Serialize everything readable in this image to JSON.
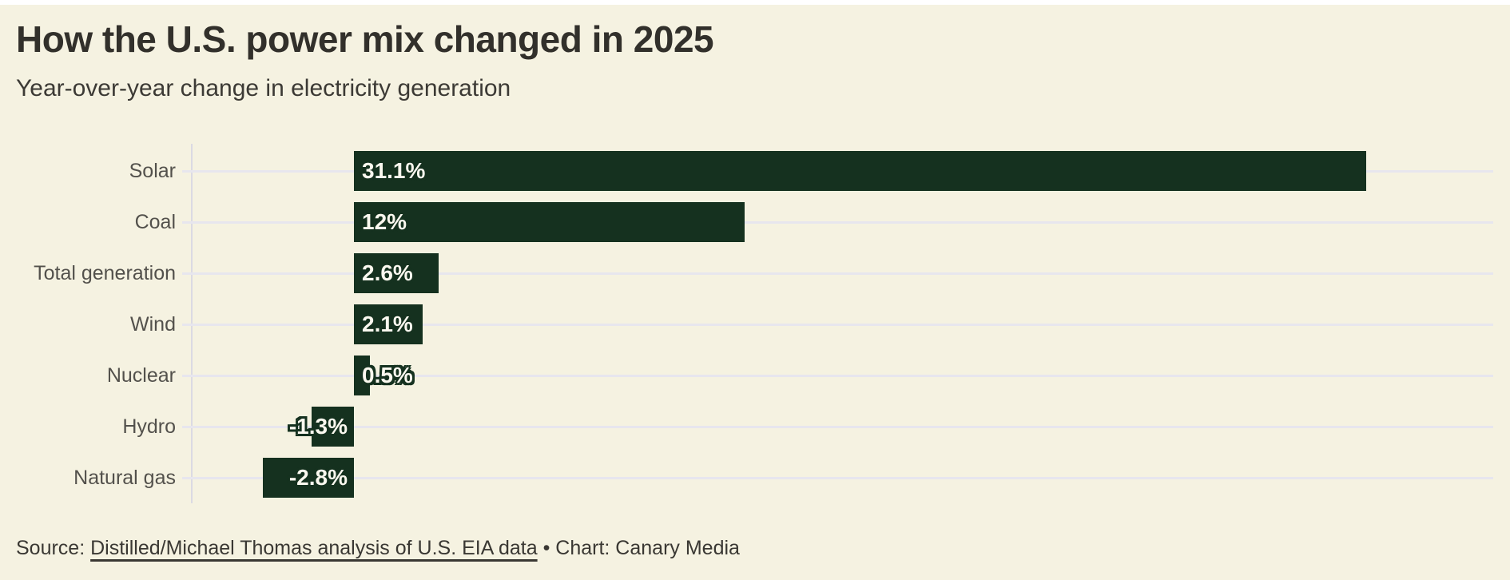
{
  "chart_data": {
    "type": "bar",
    "orientation": "horizontal",
    "title": "How the U.S. power mix changed in 2025",
    "subtitle": "Year-over-year change in electricity generation",
    "categories": [
      "Solar",
      "Coal",
      "Total generation",
      "Wind",
      "Nuclear",
      "Hydro",
      "Natural gas"
    ],
    "values": [
      31.1,
      12,
      2.6,
      2.1,
      0.5,
      -1.3,
      -2.8
    ],
    "value_labels": [
      "31.1%",
      "12%",
      "2.6%",
      "2.1%",
      "0.5%",
      "-1.3%",
      "-2.8%"
    ],
    "unit": "%",
    "xlabel": "",
    "ylabel": "",
    "xlim": [
      -5,
      35
    ],
    "grid": true,
    "legend": false,
    "colors": {
      "bar": "#15311f",
      "background": "#f5f2e1",
      "grid": "#e7e6ee",
      "axis": "#dbdae3",
      "value_text": "#faf8ef",
      "label_text": "#53514c"
    }
  },
  "footer": {
    "source_prefix": "Source: ",
    "source_link": "Distilled/Michael Thomas analysis of U.S. EIA data",
    "separator": " • ",
    "chart_credit": "Chart: Canary Media"
  }
}
